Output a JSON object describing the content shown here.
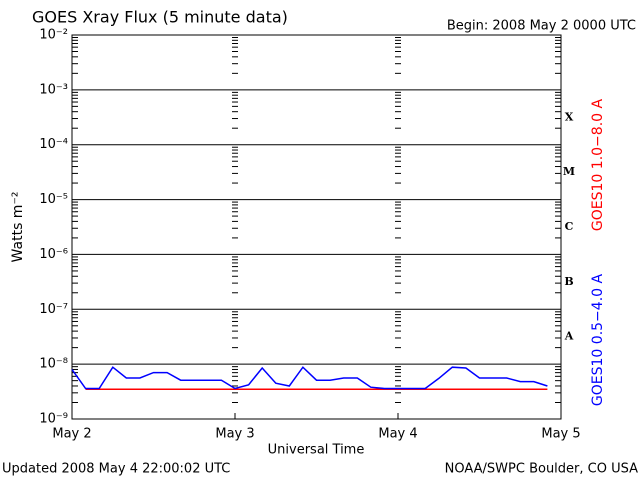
{
  "chart_data": {
    "type": "line",
    "title": "GOES Xray Flux (5 minute data)",
    "subtitle": "Begin:  2008 May 2 0000 UTC",
    "ylabel": "Watts m⁻²",
    "xlabel": "Universal Time",
    "footer_left": "Updated 2008 May  4 22:00:02 UTC",
    "footer_right": "NOAA/SWPC Boulder, CO USA",
    "log_y": true,
    "grid": true,
    "xlim": [
      0,
      72
    ],
    "xticks": [
      {
        "value": 0,
        "label": "May 2"
      },
      {
        "value": 24,
        "label": "May 3"
      },
      {
        "value": 48,
        "label": "May 4"
      },
      {
        "value": 72,
        "label": "May 5"
      }
    ],
    "ylim": [
      1e-09,
      0.01
    ],
    "yticks": [
      {
        "value": 1e-09,
        "label": "10⁻⁹"
      },
      {
        "value": 1e-08,
        "label": "10⁻⁸"
      },
      {
        "value": 1e-07,
        "label": "10⁻⁷"
      },
      {
        "value": 1e-06,
        "label": "10⁻⁶"
      },
      {
        "value": 1e-05,
        "label": "10⁻⁵"
      },
      {
        "value": 0.0001,
        "label": "10⁻⁴"
      },
      {
        "value": 0.001,
        "label": "10⁻³"
      },
      {
        "value": 0.01,
        "label": "10⁻²"
      }
    ],
    "flare_classes": [
      {
        "label": "A",
        "value": 1e-08
      },
      {
        "label": "B",
        "value": 1e-07
      },
      {
        "label": "C",
        "value": 1e-06
      },
      {
        "label": "M",
        "value": 1e-05
      },
      {
        "label": "X",
        "value": 0.0001
      }
    ],
    "x": [
      0,
      2,
      4,
      6,
      8,
      10,
      12,
      14,
      16,
      18,
      20,
      22,
      24,
      26,
      28,
      30,
      32,
      34,
      36,
      38,
      40,
      42,
      44,
      46,
      48,
      50,
      52,
      54,
      56,
      58,
      60,
      62,
      64,
      66,
      68,
      70
    ],
    "series": [
      {
        "name": "GOES10 1.0−8.0 A",
        "color": "#ff0000",
        "values": [
          null,
          3.5e-09,
          3.5e-09,
          3.5e-09,
          3.5e-09,
          3.5e-09,
          3.5e-09,
          3.5e-09,
          3.5e-09,
          3.5e-09,
          3.5e-09,
          3.5e-09,
          3.5e-09,
          3.5e-09,
          3.5e-09,
          3.5e-09,
          3.5e-09,
          3.5e-09,
          3.5e-09,
          3.5e-09,
          3.5e-09,
          3.5e-09,
          3.5e-09,
          3.5e-09,
          3.5e-09,
          3.5e-09,
          3.5e-09,
          3.5e-09,
          3.5e-09,
          3.5e-09,
          3.5e-09,
          3.5e-09,
          3.5e-09,
          3.5e-09,
          3.5e-09,
          3.5e-09
        ]
      },
      {
        "name": "GOES10 0.5−4.0 A",
        "color": "#0000ff",
        "values": [
          8e-09,
          3.6e-09,
          3.6e-09,
          8.8e-09,
          5.6e-09,
          5.6e-09,
          7e-09,
          7e-09,
          5.1e-09,
          5.1e-09,
          5.1e-09,
          5.1e-09,
          3.6e-09,
          4.2e-09,
          8.5e-09,
          4.5e-09,
          4e-09,
          8.8e-09,
          5.1e-09,
          5.1e-09,
          5.6e-09,
          5.6e-09,
          3.8e-09,
          3.6e-09,
          3.6e-09,
          3.6e-09,
          3.6e-09,
          5.5e-09,
          8.8e-09,
          8.5e-09,
          5.6e-09,
          5.6e-09,
          5.6e-09,
          4.8e-09,
          4.8e-09,
          4e-09
        ]
      }
    ]
  }
}
